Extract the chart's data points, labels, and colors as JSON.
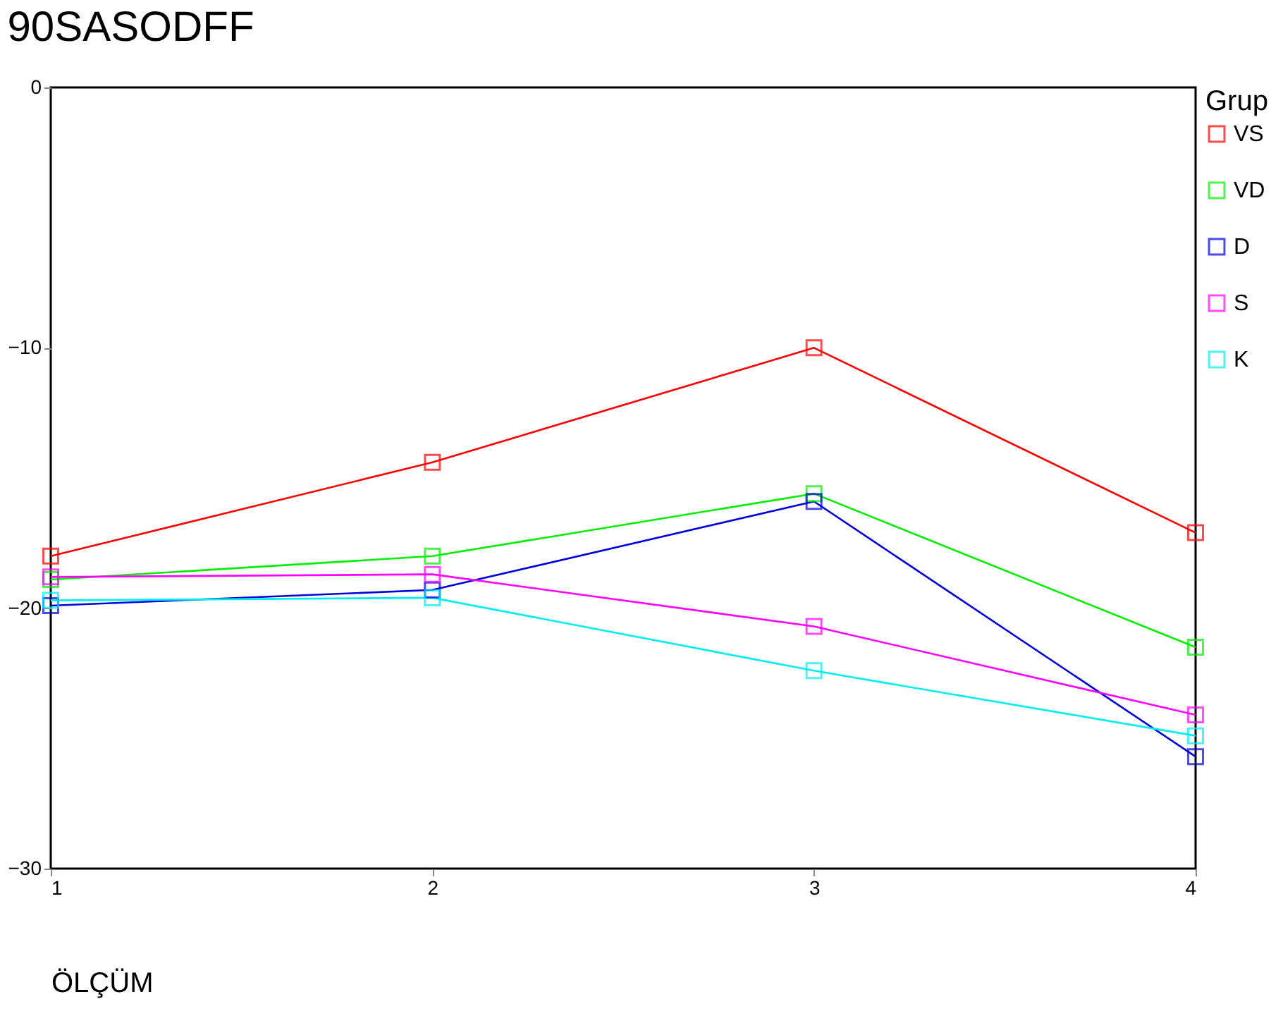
{
  "chart_data": {
    "type": "line",
    "title": "90SASODFF",
    "xlabel": "ÖLÇÜM",
    "legend_title": "Grup",
    "x": [
      1,
      2,
      3,
      4
    ],
    "xlim": [
      1,
      4
    ],
    "xticks": [
      1,
      2,
      3,
      4
    ],
    "ylim": [
      -30,
      0
    ],
    "yticks": [
      0,
      -10,
      -20,
      -30
    ],
    "grid": false,
    "legend": "right",
    "marker": "square",
    "line_style": "solid",
    "series": [
      {
        "name": "VS",
        "color": "#ff0000",
        "values": [
          -18.0,
          -14.4,
          -10.0,
          -17.1
        ]
      },
      {
        "name": "VD",
        "color": "#00ee00",
        "values": [
          -18.9,
          -18.0,
          -15.6,
          -21.5
        ]
      },
      {
        "name": "D",
        "color": "#0000dd",
        "values": [
          -19.9,
          -19.3,
          -15.9,
          -25.7
        ]
      },
      {
        "name": "S",
        "color": "#ff00ff",
        "values": [
          -18.8,
          -18.7,
          -20.7,
          -24.1
        ]
      },
      {
        "name": "K",
        "color": "#00eeee",
        "values": [
          -19.7,
          -19.6,
          -22.4,
          -24.9
        ]
      }
    ]
  }
}
